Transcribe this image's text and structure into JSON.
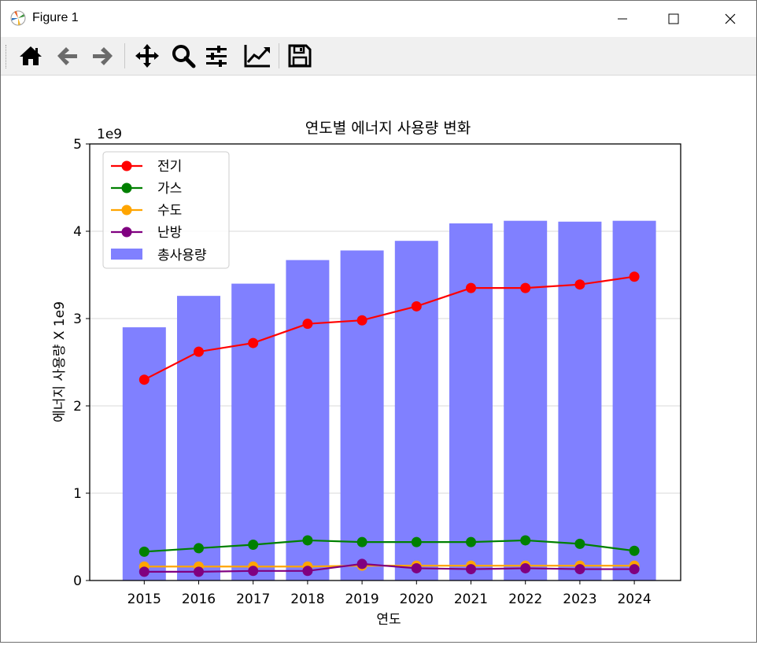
{
  "window": {
    "title": "Figure 1"
  },
  "toolbar": {
    "buttons": [
      {
        "name": "home-icon"
      },
      {
        "name": "back-icon"
      },
      {
        "name": "forward-icon"
      },
      {
        "name": "pan-icon"
      },
      {
        "name": "zoom-icon"
      },
      {
        "name": "subplots-icon"
      },
      {
        "name": "edit-axis-icon"
      },
      {
        "name": "save-icon"
      }
    ]
  },
  "chart_data": {
    "type": "bar",
    "title": "연도별 에너지 사용량 변화",
    "xlabel": "연도",
    "ylabel": "에너지 사용량 X 1e9",
    "offset_text": "1e9",
    "categories": [
      "2015",
      "2016",
      "2017",
      "2018",
      "2019",
      "2020",
      "2021",
      "2022",
      "2023",
      "2024"
    ],
    "yticks": [
      "0",
      "1",
      "2",
      "3",
      "4",
      "5"
    ],
    "ylim": [
      0,
      5
    ],
    "grid": "y",
    "legend": "upper-left",
    "bar_series": {
      "name": "총사용량",
      "color": "#8080ff",
      "values": [
        2.9,
        3.26,
        3.4,
        3.67,
        3.78,
        3.89,
        4.09,
        4.12,
        4.11,
        4.12
      ]
    },
    "line_series": [
      {
        "name": "전기",
        "color": "#ff0000",
        "values": [
          2.3,
          2.62,
          2.72,
          2.94,
          2.98,
          3.14,
          3.35,
          3.35,
          3.39,
          3.48
        ]
      },
      {
        "name": "가스",
        "color": "#008000",
        "values": [
          0.33,
          0.37,
          0.41,
          0.46,
          0.44,
          0.44,
          0.44,
          0.46,
          0.42,
          0.34
        ]
      },
      {
        "name": "수도",
        "color": "#ffa500",
        "values": [
          0.16,
          0.16,
          0.16,
          0.16,
          0.17,
          0.17,
          0.17,
          0.17,
          0.17,
          0.17
        ]
      },
      {
        "name": "난방",
        "color": "#800080",
        "values": [
          0.1,
          0.1,
          0.11,
          0.11,
          0.19,
          0.14,
          0.13,
          0.14,
          0.13,
          0.13
        ]
      }
    ]
  }
}
